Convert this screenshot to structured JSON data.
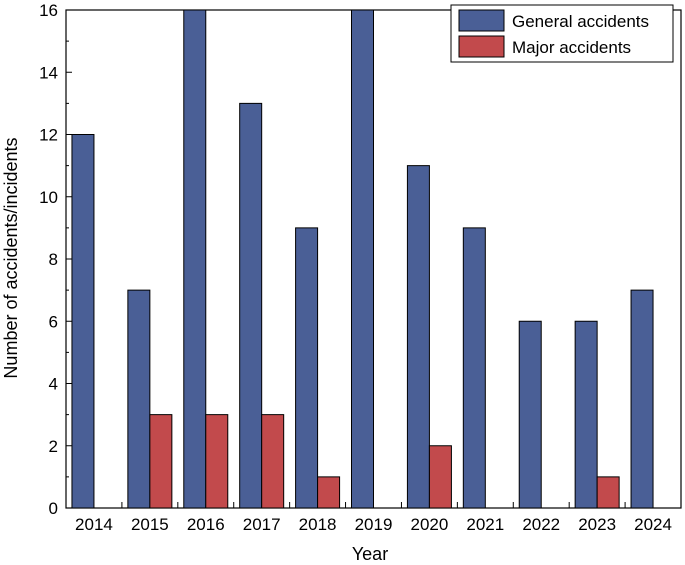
{
  "colors": {
    "general": "#4a5f96",
    "major": "#c24a4c",
    "axis": "#000000"
  },
  "chart_data": {
    "type": "bar",
    "title": "",
    "xlabel": "Year",
    "ylabel": "Number of accidents/incidents",
    "ylim": [
      0,
      16
    ],
    "yticks": [
      "0",
      "2",
      "4",
      "6",
      "8",
      "10",
      "12",
      "14",
      "16"
    ],
    "categories": [
      "2014",
      "2015",
      "2016",
      "2017",
      "2018",
      "2019",
      "2020",
      "2021",
      "2022",
      "2023",
      "2024"
    ],
    "series": [
      {
        "name": "General accidents",
        "values": [
          12,
          7,
          16,
          13,
          9,
          16,
          11,
          9,
          6,
          6,
          7
        ]
      },
      {
        "name": "Major accidents",
        "values": [
          0,
          3,
          3,
          3,
          1,
          0,
          2,
          0,
          0,
          1,
          0
        ]
      }
    ],
    "legend_position": "top-right"
  }
}
